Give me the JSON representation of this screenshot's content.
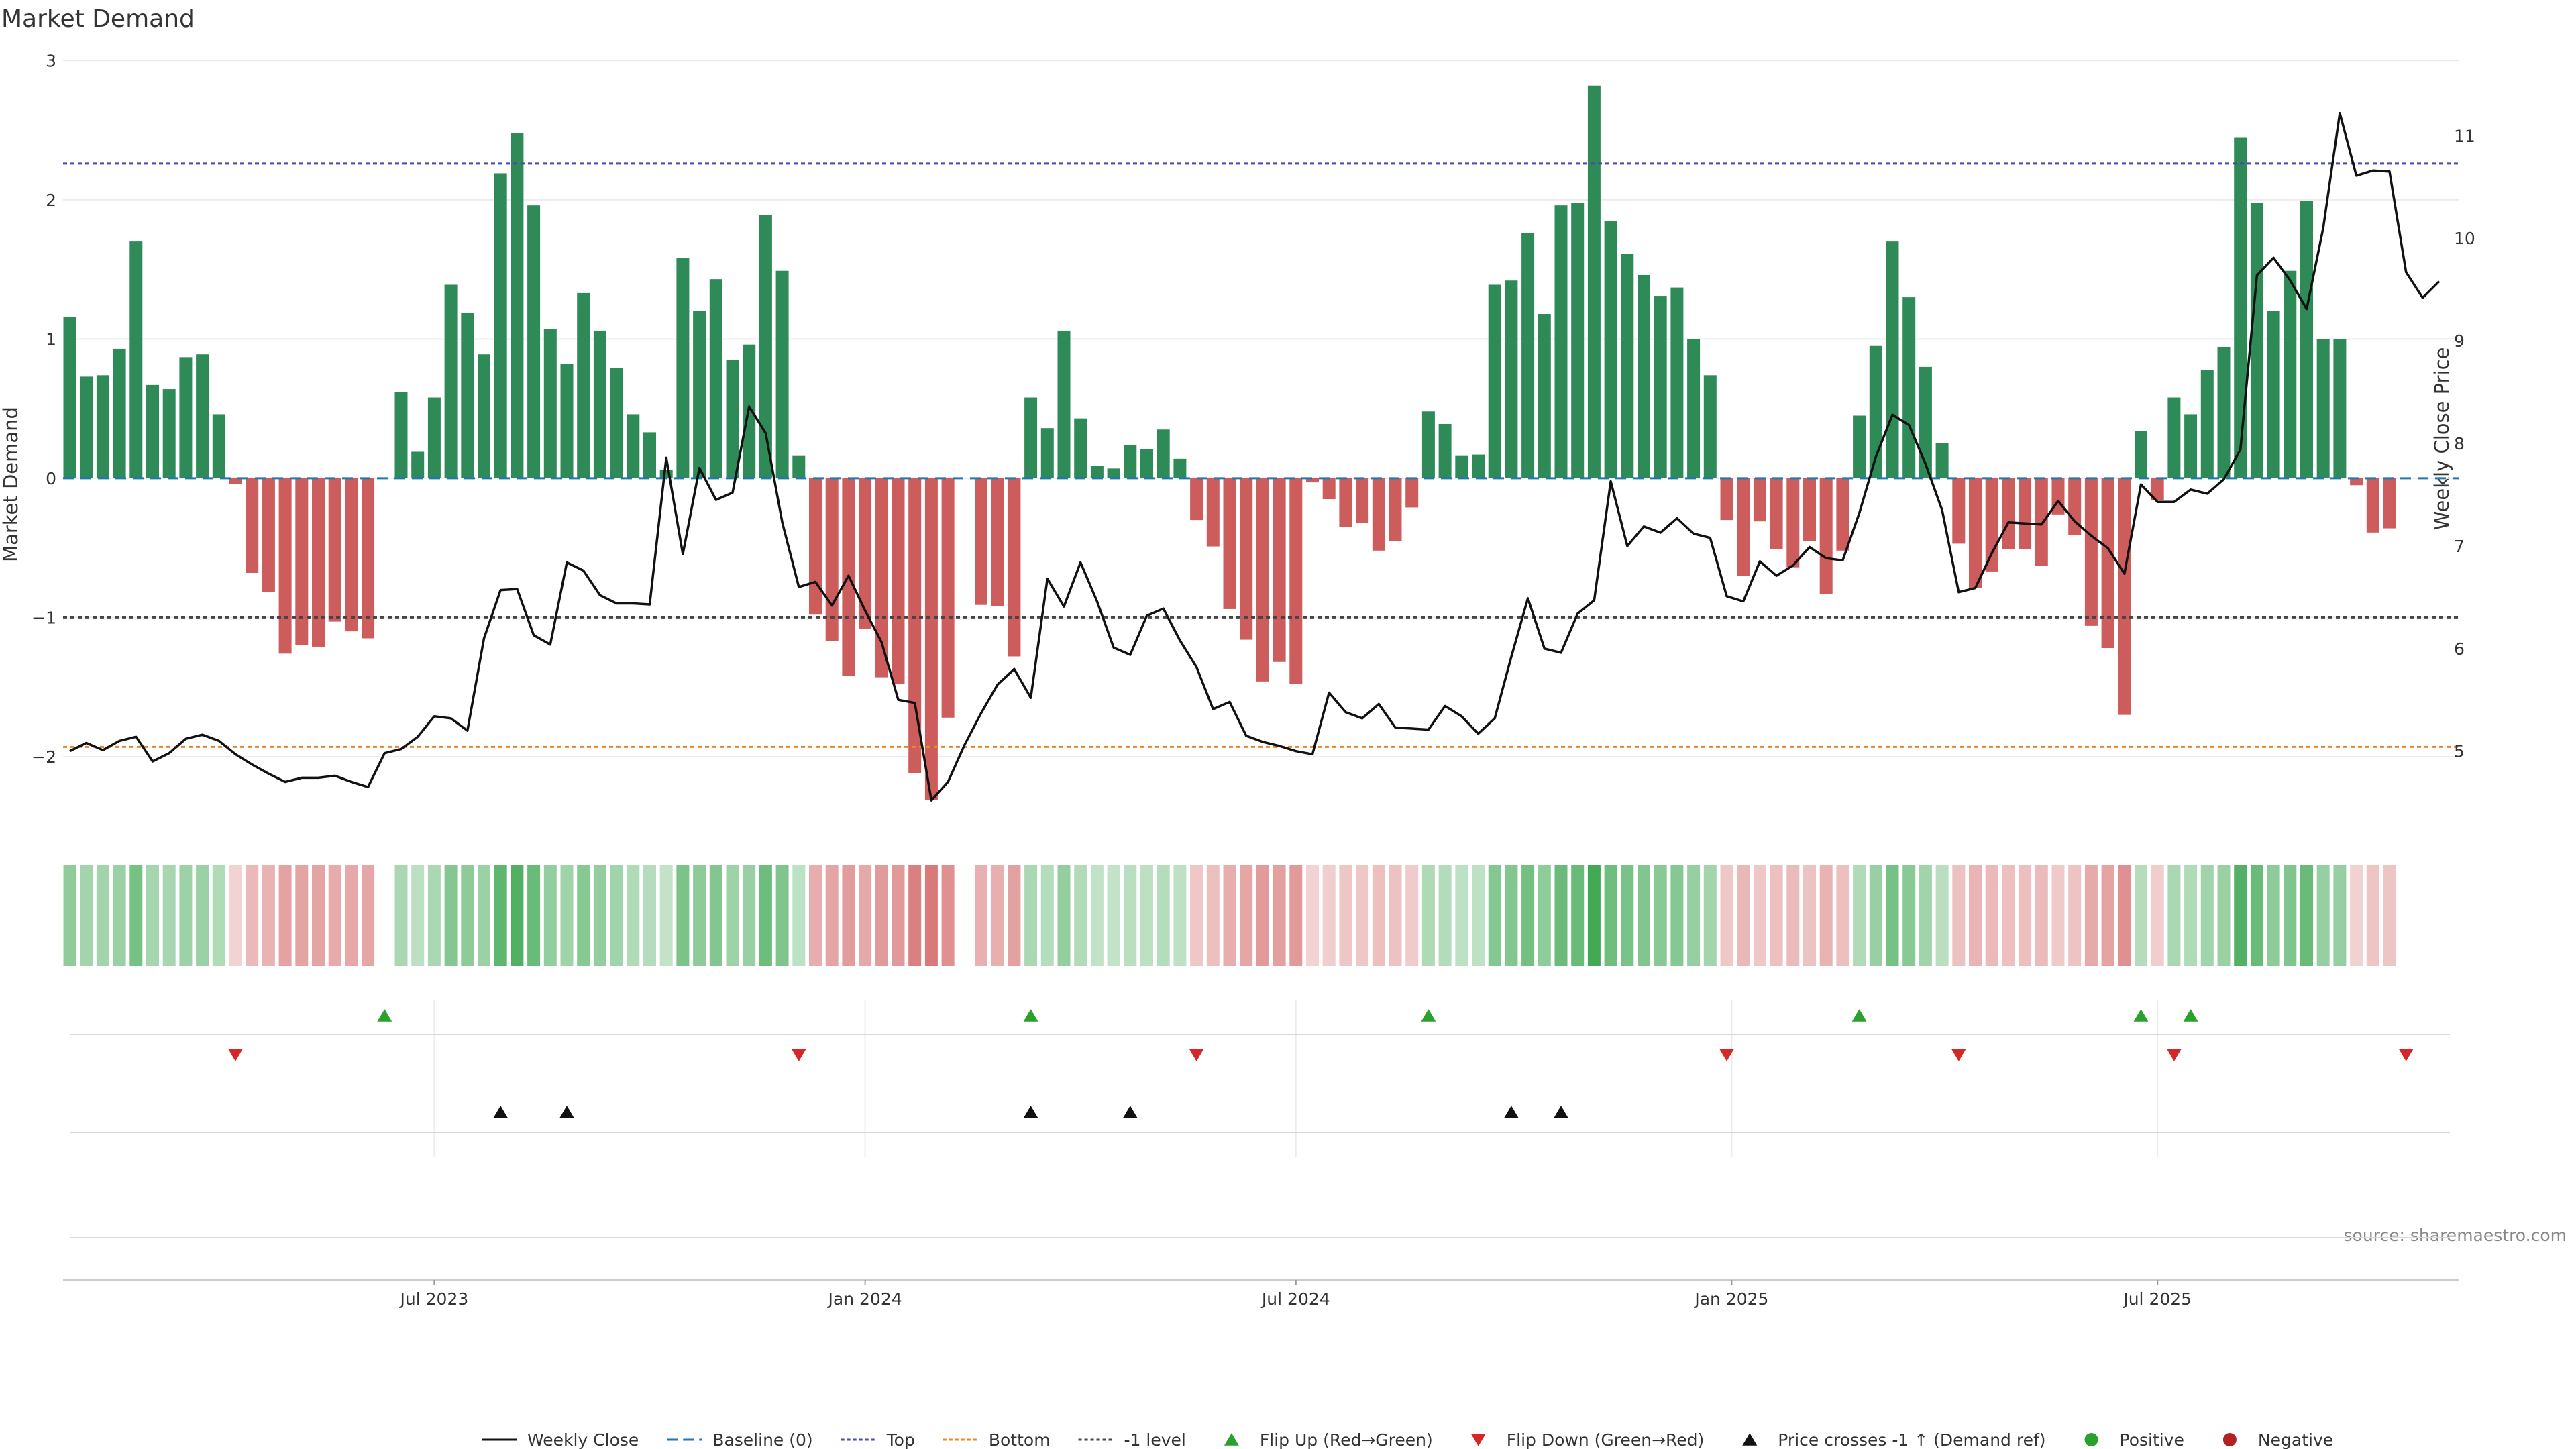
{
  "chart_data": {
    "type": "bar",
    "title": "Market Demand",
    "ylabel_left": "Market Demand",
    "ylabel_right": "Weekly Close Price",
    "ylim_left": [
      -2.55,
      3.05
    ],
    "ylim_right": [
      4.2,
      11.8
    ],
    "yticks_left": [
      {
        "v": 3,
        "label": "3"
      },
      {
        "v": 2,
        "label": "2"
      },
      {
        "v": 1,
        "label": "1"
      },
      {
        "v": 0,
        "label": "0"
      },
      {
        "v": -1,
        "label": "−1"
      },
      {
        "v": -2,
        "label": "−2"
      }
    ],
    "yticks_right": [
      {
        "v": 11,
        "label": "11"
      },
      {
        "v": 10,
        "label": "10"
      },
      {
        "v": 9,
        "label": "9"
      },
      {
        "v": 8,
        "label": "8"
      },
      {
        "v": 7,
        "label": "7"
      },
      {
        "v": 6,
        "label": "6"
      },
      {
        "v": 5,
        "label": "5"
      }
    ],
    "x_ticks": [
      {
        "index": 22,
        "label": "Jul 2023"
      },
      {
        "index": 48,
        "label": "Jan 2024"
      },
      {
        "index": 74,
        "label": "Jul 2024"
      },
      {
        "index": 100.3,
        "label": "Jan 2025"
      },
      {
        "index": 126,
        "label": "Jul 2025"
      }
    ],
    "demand": [
      1.16,
      0.73,
      0.74,
      0.93,
      1.7,
      0.67,
      0.64,
      0.87,
      0.89,
      0.46,
      -0.04,
      -0.68,
      -0.82,
      -1.26,
      -1.2,
      -1.21,
      -1.03,
      -1.1,
      -1.15,
      null,
      0.62,
      0.19,
      0.58,
      1.39,
      1.19,
      0.89,
      2.19,
      2.48,
      1.96,
      1.07,
      0.82,
      1.33,
      1.06,
      0.79,
      0.46,
      0.33,
      0.06,
      1.58,
      1.2,
      1.43,
      0.85,
      0.96,
      1.89,
      1.49,
      0.16,
      -0.98,
      -1.17,
      -1.42,
      -1.08,
      -1.43,
      -1.48,
      -2.12,
      -2.31,
      -1.72,
      null,
      -0.91,
      -0.92,
      -1.28,
      0.58,
      0.36,
      1.06,
      0.43,
      0.09,
      0.07,
      0.24,
      0.21,
      0.35,
      0.14,
      -0.3,
      -0.49,
      -0.94,
      -1.16,
      -1.46,
      -1.32,
      -1.48,
      -0.03,
      -0.15,
      -0.35,
      -0.32,
      -0.52,
      -0.45,
      -0.21,
      0.48,
      0.39,
      0.16,
      0.17,
      1.39,
      1.42,
      1.76,
      1.18,
      1.96,
      1.98,
      2.82,
      1.85,
      1.61,
      1.46,
      1.31,
      1.37,
      1.0,
      0.74,
      -0.3,
      -0.7,
      -0.31,
      -0.51,
      -0.64,
      -0.45,
      -0.83,
      -0.52,
      0.45,
      0.95,
      1.7,
      1.3,
      0.8,
      0.25,
      -0.47,
      -0.79,
      -0.67,
      -0.51,
      -0.51,
      -0.63,
      -0.26,
      -0.41,
      -1.06,
      -1.22,
      -1.7,
      0.34,
      -0.16,
      0.58,
      0.46,
      0.78,
      0.94,
      2.45,
      1.98,
      1.2,
      1.49,
      1.99,
      1.0,
      1.0,
      -0.05,
      -0.39,
      -0.36
    ],
    "weekly_close": [
      5.0,
      5.08,
      5.01,
      5.1,
      5.14,
      4.9,
      4.98,
      5.12,
      5.16,
      5.1,
      4.97,
      4.87,
      4.78,
      4.7,
      4.74,
      4.74,
      4.76,
      4.7,
      4.65,
      4.98,
      5.02,
      5.14,
      5.34,
      5.32,
      5.2,
      6.1,
      6.57,
      6.58,
      6.13,
      6.04,
      6.84,
      6.76,
      6.52,
      6.44,
      6.44,
      6.43,
      7.86,
      6.92,
      7.76,
      7.45,
      7.52,
      8.36,
      8.1,
      7.23,
      6.6,
      6.65,
      6.42,
      6.71,
      6.37,
      6.06,
      5.5,
      5.47,
      4.52,
      4.7,
      5.06,
      5.37,
      5.65,
      5.8,
      5.52,
      6.68,
      6.41,
      6.84,
      6.46,
      6.01,
      5.94,
      6.32,
      6.39,
      6.08,
      5.82,
      5.41,
      5.48,
      5.15,
      5.09,
      5.05,
      5.0,
      4.97,
      5.57,
      5.38,
      5.32,
      5.46,
      5.23,
      5.22,
      5.21,
      5.44,
      5.34,
      5.17,
      5.32,
      5.92,
      6.49,
      6.0,
      5.96,
      6.34,
      6.47,
      7.63,
      7.0,
      7.19,
      7.13,
      7.27,
      7.12,
      7.08,
      6.51,
      6.46,
      6.85,
      6.71,
      6.81,
      6.99,
      6.88,
      6.86,
      7.32,
      7.87,
      8.28,
      8.18,
      7.8,
      7.35,
      6.55,
      6.59,
      6.93,
      7.23,
      7.22,
      7.21,
      7.44,
      7.24,
      7.1,
      6.98,
      6.73,
      7.6,
      7.43,
      7.43,
      7.55,
      7.51,
      7.65,
      7.94,
      9.64,
      9.81,
      9.59,
      9.31,
      10.1,
      11.22,
      10.61,
      10.66,
      10.65,
      9.67,
      9.42,
      9.58
    ],
    "levels": [
      {
        "name": "Top",
        "value": 2.26,
        "color": "#4a4aa8"
      },
      {
        "name": "Bottom",
        "value": -1.93,
        "color": "#e58a2a"
      },
      {
        "name": "-1 level",
        "value": -1.0,
        "color": "#444444"
      }
    ],
    "flip_up_indices": [
      19,
      58,
      82,
      108,
      125,
      128
    ],
    "flip_down_indices": [
      10,
      44,
      68,
      100,
      114,
      127,
      141
    ],
    "price_cross_indices": [
      26,
      30,
      58,
      64,
      87,
      90
    ],
    "colors": {
      "positive_bar": "#2e8b57",
      "negative_bar": "#cd5c5c",
      "flip_up": "#2ca02c",
      "flip_down": "#d62728",
      "price_line": "#111111",
      "baseline": "#1f77b4",
      "positive_dot": "#2ca02c",
      "negative_dot": "#b22222"
    },
    "legend": [
      {
        "label": "Weekly Close",
        "symbol": "line",
        "color": "#111111"
      },
      {
        "label": "Baseline (0)",
        "symbol": "dashed",
        "color": "#1f77b4"
      },
      {
        "label": "Top",
        "symbol": "dotted",
        "color": "#4a4aa8"
      },
      {
        "label": "Bottom",
        "symbol": "dotted",
        "color": "#e58a2a"
      },
      {
        "label": "-1 level",
        "symbol": "dotted",
        "color": "#444444"
      },
      {
        "label": "Flip Up (Red→Green)",
        "symbol": "triangle-up",
        "color": "#2ca02c"
      },
      {
        "label": "Flip Down (Green→Red)",
        "symbol": "triangle-down",
        "color": "#d62728"
      },
      {
        "label": "Price crosses -1 ↑ (Demand ref)",
        "symbol": "triangle-up",
        "color": "#111111"
      },
      {
        "label": "Positive",
        "symbol": "dot",
        "color": "#2ca02c"
      },
      {
        "label": "Negative",
        "symbol": "dot",
        "color": "#b22222"
      }
    ],
    "source": "source: sharemaestro.com"
  }
}
